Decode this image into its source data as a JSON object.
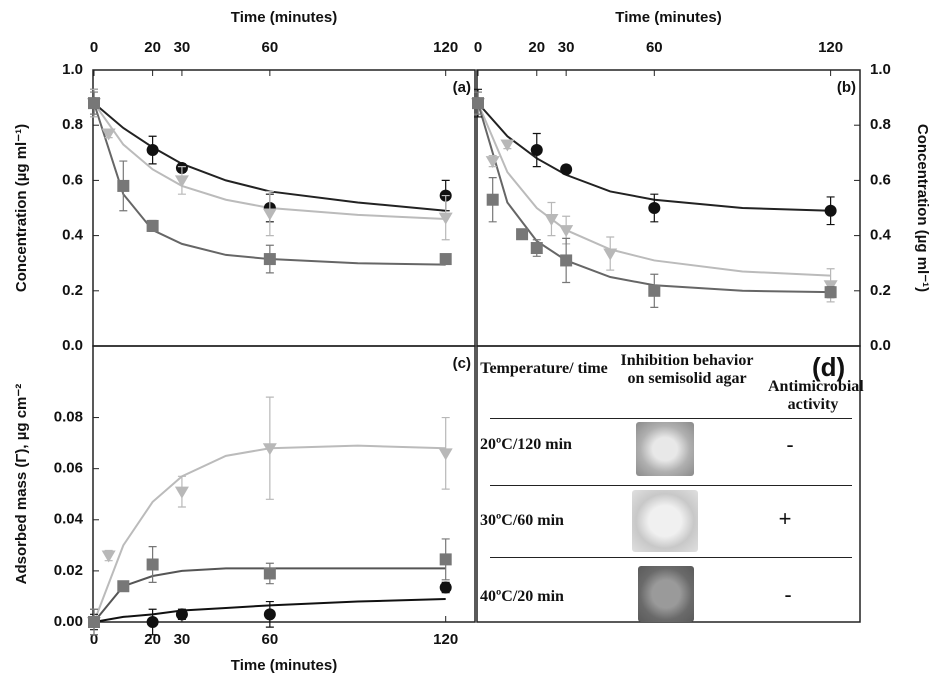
{
  "chart_data": [
    {
      "type": "scatter",
      "panel_label": "(a)",
      "x_label": "Time (minutes)",
      "y_label": "Concentration (µg ml⁻¹)",
      "xlim": [
        0,
        130
      ],
      "xticks": [
        0,
        20,
        30,
        60,
        120
      ],
      "ylim": [
        0,
        1
      ],
      "yticks": [
        {
          "value": 0,
          "label": "0.0"
        },
        0.2,
        0.4,
        0.6,
        0.8,
        {
          "value": 1,
          "label": "1.0"
        }
      ],
      "series": [
        {
          "color": "#111111",
          "line_color": "#222222",
          "marker": "circle",
          "x": [
            0,
            20,
            30,
            60,
            120
          ],
          "values": [
            0.88,
            0.71,
            0.645,
            0.5,
            0.545
          ],
          "errors": [
            0.05,
            0.05,
            0.015,
            0.05,
            0.055
          ],
          "fit_x": [
            0,
            10,
            20,
            30,
            45,
            60,
            90,
            120
          ],
          "fit_values": [
            0.88,
            0.79,
            0.72,
            0.66,
            0.6,
            0.56,
            0.52,
            0.49
          ]
        },
        {
          "color": "#b8b8b8",
          "line_color": "#bbbbbb",
          "marker": "triangle",
          "x": [
            0,
            5,
            30,
            60,
            120
          ],
          "values": [
            0.88,
            0.77,
            0.6,
            0.48,
            0.465
          ],
          "errors": [
            0.05,
            0.015,
            0.05,
            0.08,
            0.08
          ],
          "fit_x": [
            0,
            10,
            20,
            30,
            45,
            60,
            90,
            120
          ],
          "fit_values": [
            0.88,
            0.73,
            0.64,
            0.58,
            0.53,
            0.5,
            0.475,
            0.46
          ]
        },
        {
          "color": "#777777",
          "line_color": "#666666",
          "marker": "square",
          "x": [
            0,
            10,
            20,
            60,
            120
          ],
          "values": [
            0.88,
            0.58,
            0.435,
            0.315,
            0.315
          ],
          "errors": [
            0.04,
            0.09,
            0.02,
            0.05,
            0.015
          ],
          "fit_x": [
            0,
            10,
            20,
            30,
            45,
            60,
            90,
            120
          ],
          "fit_values": [
            0.88,
            0.55,
            0.42,
            0.37,
            0.33,
            0.315,
            0.3,
            0.295
          ]
        }
      ]
    },
    {
      "type": "scatter",
      "panel_label": "(b)",
      "x_label": "Time (minutes)",
      "y_label": "Concentration (µg ml⁻¹)",
      "xlim": [
        0,
        130
      ],
      "xticks": [
        0,
        20,
        30,
        60,
        120
      ],
      "ylim": [
        0,
        1
      ],
      "yticks": [
        {
          "value": 0,
          "label": "0.0"
        },
        0.2,
        0.4,
        0.6,
        0.8,
        {
          "value": 1,
          "label": "1.0"
        }
      ],
      "series": [
        {
          "color": "#111111",
          "line_color": "#222222",
          "marker": "circle",
          "x": [
            0,
            20,
            30,
            60,
            120
          ],
          "values": [
            0.88,
            0.71,
            0.64,
            0.5,
            0.49
          ],
          "errors": [
            0.05,
            0.06,
            0.015,
            0.05,
            0.05
          ],
          "fit_x": [
            0,
            10,
            20,
            30,
            45,
            60,
            90,
            120
          ],
          "fit_values": [
            0.88,
            0.76,
            0.68,
            0.62,
            0.56,
            0.53,
            0.5,
            0.49
          ]
        },
        {
          "color": "#b8b8b8",
          "line_color": "#bbbbbb",
          "marker": "triangle",
          "x": [
            0,
            5,
            10,
            25,
            30,
            45,
            120
          ],
          "values": [
            0.88,
            0.67,
            0.73,
            0.46,
            0.42,
            0.335,
            0.22
          ],
          "errors": [
            0.04,
            0.02,
            0.015,
            0.06,
            0.05,
            0.06,
            0.06
          ],
          "fit_x": [
            0,
            10,
            20,
            30,
            45,
            60,
            90,
            120
          ],
          "fit_values": [
            0.88,
            0.63,
            0.5,
            0.42,
            0.35,
            0.31,
            0.27,
            0.255
          ]
        },
        {
          "color": "#777777",
          "line_color": "#666666",
          "marker": "square",
          "x": [
            0,
            5,
            15,
            20,
            30,
            60,
            120
          ],
          "values": [
            0.88,
            0.53,
            0.405,
            0.355,
            0.31,
            0.2,
            0.195
          ],
          "errors": [
            0.04,
            0.08,
            0.015,
            0.03,
            0.08,
            0.06,
            0.02
          ],
          "fit_x": [
            0,
            10,
            20,
            30,
            45,
            60,
            90,
            120
          ],
          "fit_values": [
            0.88,
            0.52,
            0.38,
            0.31,
            0.25,
            0.22,
            0.2,
            0.195
          ]
        }
      ]
    },
    {
      "type": "scatter",
      "panel_label": "(c)",
      "x_label": "Time (minutes)",
      "y_label": "Adsorbed mass (Γ),  µg cm⁻²",
      "xlim": [
        0,
        130
      ],
      "xticks": [
        0,
        20,
        30,
        60,
        120
      ],
      "ylim": [
        0,
        0.108
      ],
      "yticks": [
        {
          "value": 0,
          "label": "0.00"
        },
        0.02,
        0.04,
        0.06,
        0.08
      ],
      "series": [
        {
          "color": "#111111",
          "line_color": "#111111",
          "marker": "circle",
          "x": [
            0,
            20,
            30,
            60,
            120
          ],
          "values": [
            0,
            0,
            0.003,
            0.003,
            0.0135
          ],
          "errors": [
            0.003,
            0.005,
            0.002,
            0.005,
            0.002
          ],
          "fit_x": [
            0,
            10,
            20,
            30,
            45,
            60,
            90,
            120
          ],
          "fit_values": [
            0,
            0.002,
            0.003,
            0.0045,
            0.0055,
            0.0065,
            0.008,
            0.009
          ]
        },
        {
          "color": "#b8b8b8",
          "line_color": "#bbbbbb",
          "marker": "triangle",
          "x": [
            0,
            5,
            30,
            60,
            120
          ],
          "values": [
            0,
            0.026,
            0.051,
            0.068,
            0.066
          ],
          "errors": [
            0.005,
            0.002,
            0.006,
            0.02,
            0.014
          ],
          "fit_x": [
            0,
            10,
            20,
            30,
            45,
            60,
            90,
            120
          ],
          "fit_values": [
            0,
            0.03,
            0.047,
            0.057,
            0.065,
            0.068,
            0.069,
            0.068
          ]
        },
        {
          "color": "#777777",
          "line_color": "#555555",
          "marker": "square",
          "x": [
            0,
            10,
            20,
            60,
            120
          ],
          "values": [
            0,
            0.014,
            0.0225,
            0.019,
            0.0245
          ],
          "errors": [
            0.005,
            0.002,
            0.007,
            0.004,
            0.008
          ],
          "fit_x": [
            0,
            10,
            20,
            30,
            45,
            60,
            90,
            120
          ],
          "fit_values": [
            0,
            0.014,
            0.018,
            0.02,
            0.021,
            0.021,
            0.021,
            0.021
          ]
        }
      ]
    }
  ],
  "table": {
    "panel_label": "(d)",
    "header": [
      "Temperature/ time",
      "Inhibition behavior on semisolid agar",
      "Antimicrobial activity"
    ],
    "rows": [
      [
        "20ºC/120 min",
        "-"
      ],
      [
        "30ºC/60 min",
        "+"
      ],
      [
        "40ºC/20 min",
        "-"
      ]
    ]
  }
}
